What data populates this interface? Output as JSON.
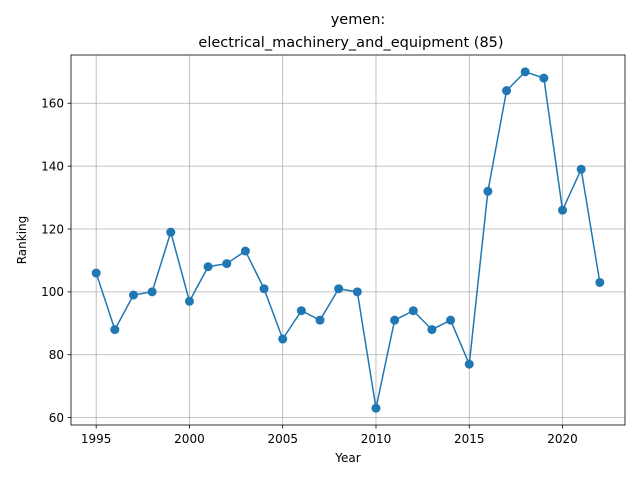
{
  "chart_data": {
    "type": "line",
    "title_line1": "yemen:",
    "title_line2": "electrical_machinery_and_equipment (85)",
    "xlabel": "Year",
    "ylabel": "Ranking",
    "xlim": [
      1993.65,
      2023.35
    ],
    "ylim": [
      57.65,
      175.35
    ],
    "xticks": [
      1995,
      2000,
      2005,
      2010,
      2015,
      2020
    ],
    "yticks": [
      60,
      80,
      100,
      120,
      140,
      160
    ],
    "grid": true,
    "color": "#1f77b4",
    "series": [
      {
        "x": [
          1995,
          1996,
          1997,
          1998,
          1999,
          2000,
          2001,
          2002,
          2003,
          2004,
          2005,
          2006,
          2007,
          2008,
          2009,
          2010,
          2011,
          2012,
          2013,
          2014,
          2015,
          2016,
          2017,
          2018,
          2019,
          2020,
          2021,
          2022
        ],
        "y": [
          106,
          88,
          99,
          100,
          119,
          97,
          108,
          109,
          113,
          101,
          85,
          94,
          91,
          101,
          100,
          63,
          91,
          94,
          88,
          91,
          77,
          132,
          164,
          170,
          168,
          126,
          139,
          103
        ]
      }
    ]
  }
}
